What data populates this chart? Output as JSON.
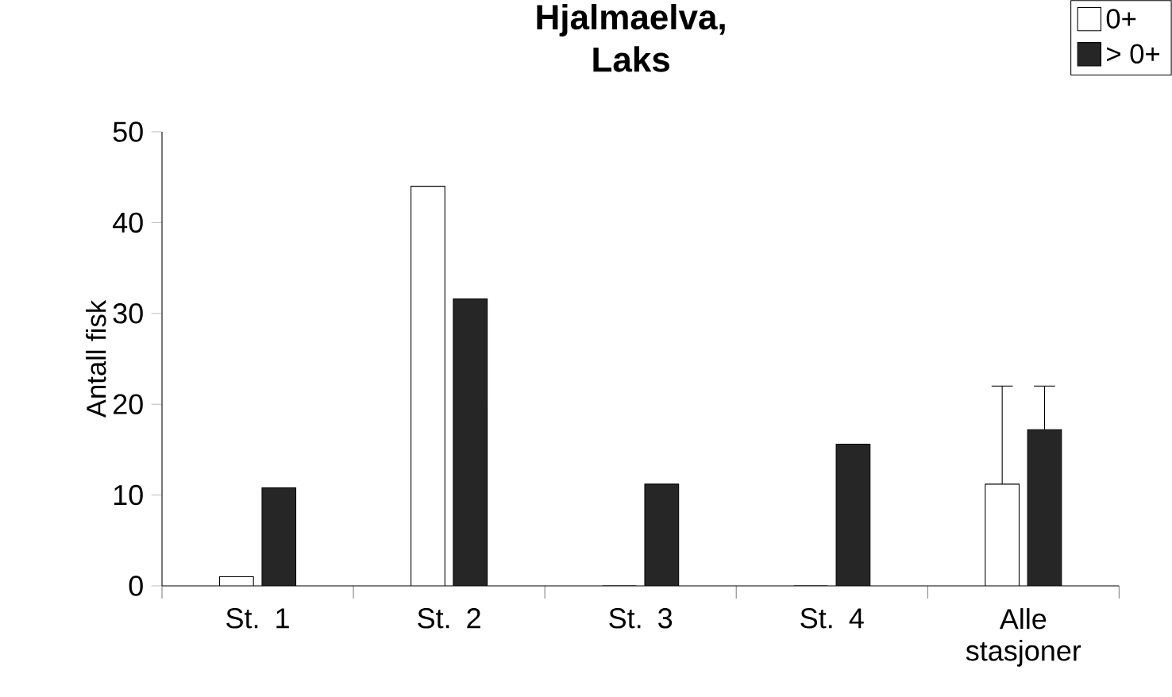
{
  "chart_data": {
    "type": "bar",
    "title": "Hjalmaelva, Laks",
    "ylabel": "Antall fisk",
    "categories": [
      "St. 1",
      "St. 2",
      "St. 3",
      "St. 4",
      "Alle stasjoner"
    ],
    "series": [
      {
        "name": "0+",
        "color": "#ffffff",
        "values": [
          1,
          44,
          0,
          0,
          11.2
        ],
        "errors": [
          null,
          null,
          null,
          null,
          [
            11.2,
            22
          ]
        ]
      },
      {
        "name": "> 0+",
        "color": "#262626",
        "values": [
          10.8,
          31.6,
          11.2,
          15.6,
          17.2
        ],
        "errors": [
          null,
          null,
          null,
          null,
          [
            17.2,
            22
          ]
        ]
      }
    ],
    "ylim": [
      0,
      50
    ],
    "yticks": [
      0,
      10,
      20,
      30,
      40,
      50
    ],
    "grid": false,
    "legend": "top right"
  }
}
